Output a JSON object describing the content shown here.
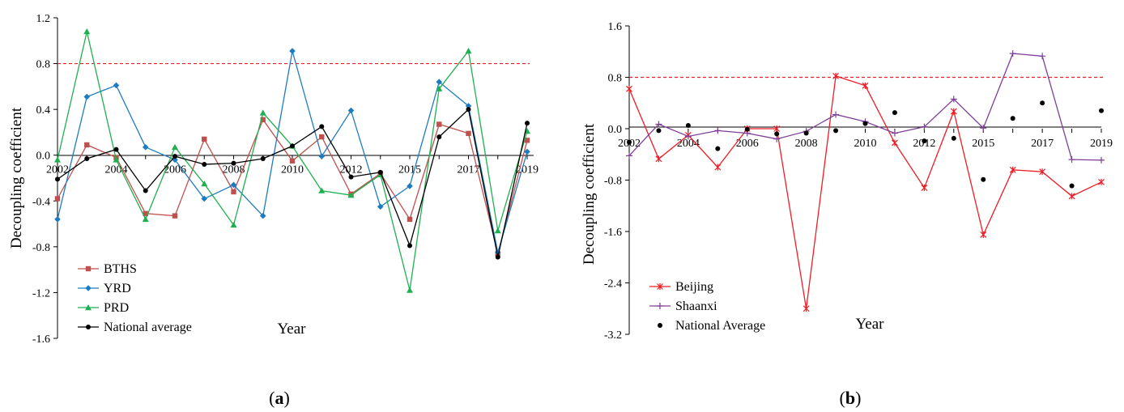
{
  "colors": {
    "BTHS": "#c0504d",
    "YRD": "#1f7bc1",
    "PRD": "#1eb04f",
    "National average": "#000000",
    "Beijing": "#ee1c24",
    "Shaanxi": "#7f3f98",
    "threshold": "#ee1c24"
  },
  "chart_data": [
    {
      "type": "line",
      "panel": "a",
      "panel_label": {
        "open": "(",
        "letter": "a",
        "close": ")"
      },
      "ylabel": "Decoupling  coefficient",
      "xlabel": "Year",
      "ylim": [
        -1.6,
        1.2
      ],
      "yticks": [
        "1.2",
        "0.8",
        "0.4",
        "0.0",
        "-0.4",
        "-0.8",
        "-1.2",
        "-1.6"
      ],
      "ytick_values": [
        1.2,
        0.8,
        0.4,
        0.0,
        -0.4,
        -0.8,
        -1.2,
        -1.6
      ],
      "x": [
        2002,
        2003,
        2004,
        2005,
        2006,
        2007,
        2008,
        2009,
        2010,
        2011,
        2012,
        2013,
        2015,
        2016,
        2017,
        2018,
        2019
      ],
      "xtick_labels": [
        "2002",
        "2004",
        "2006",
        "2008",
        "2010",
        "2012",
        "2015",
        "2017",
        "2019"
      ],
      "xtick_label_index": [
        0,
        2,
        4,
        6,
        8,
        10,
        12,
        14,
        16
      ],
      "threshold": 0.8,
      "series": [
        {
          "name": "BTHS",
          "marker": "square",
          "values": [
            -0.38,
            0.09,
            -0.02,
            -0.51,
            -0.53,
            0.14,
            -0.32,
            0.31,
            -0.05,
            0.16,
            -0.34,
            -0.16,
            -0.56,
            0.27,
            0.19,
            -0.86,
            0.13
          ]
        },
        {
          "name": "YRD",
          "marker": "diamond",
          "values": [
            -0.56,
            0.51,
            0.61,
            0.07,
            -0.04,
            -0.38,
            -0.26,
            -0.53,
            0.91,
            -0.01,
            0.39,
            -0.45,
            -0.27,
            0.64,
            0.43,
            -0.85,
            0.03
          ]
        },
        {
          "name": "PRD",
          "marker": "triangle",
          "values": [
            -0.04,
            1.08,
            -0.04,
            -0.56,
            0.07,
            -0.25,
            -0.61,
            0.37,
            0.08,
            -0.31,
            -0.35,
            -0.17,
            -1.18,
            0.58,
            0.91,
            -0.66,
            0.21
          ]
        },
        {
          "name": "National average",
          "marker": "circle",
          "values": [
            -0.21,
            -0.03,
            0.05,
            -0.31,
            -0.01,
            -0.08,
            -0.07,
            -0.03,
            0.08,
            0.25,
            -0.19,
            -0.15,
            -0.79,
            0.16,
            0.4,
            -0.89,
            0.28
          ]
        }
      ]
    },
    {
      "type": "line",
      "panel": "b",
      "panel_label": {
        "open": "(",
        "letter": "b",
        "close": ")"
      },
      "ylabel": "Decoupling  coefficient",
      "xlabel": "Year",
      "ylim": [
        -3.2,
        1.6
      ],
      "yticks": [
        "1.6",
        "0.8",
        "0.0",
        "-0.8",
        "-1.6",
        "-2.4",
        "-3.2"
      ],
      "ytick_values": [
        1.6,
        0.8,
        0.0,
        -0.8,
        -1.6,
        -2.4,
        -3.2
      ],
      "x": [
        2002,
        2003,
        2004,
        2005,
        2006,
        2007,
        2008,
        2009,
        2010,
        2011,
        2012,
        2013,
        2015,
        2016,
        2017,
        2018,
        2019
      ],
      "xtick_labels": [
        "2002",
        "2004",
        "2006",
        "2008",
        "2010",
        "2012",
        "2015",
        "2017",
        "2019"
      ],
      "xtick_label_index": [
        0,
        2,
        4,
        6,
        8,
        10,
        12,
        14,
        16
      ],
      "threshold": 0.8,
      "series": [
        {
          "name": "Beijing",
          "marker": "star",
          "values": [
            0.62,
            -0.47,
            -0.1,
            -0.6,
            0.0,
            0.0,
            -2.8,
            0.82,
            0.67,
            -0.22,
            -0.92,
            0.27,
            -1.65,
            -0.64,
            -0.67,
            -1.05,
            -0.83
          ]
        },
        {
          "name": "Shaanxi",
          "marker": "plus",
          "values": [
            -0.42,
            0.07,
            -0.12,
            -0.03,
            -0.07,
            -0.16,
            -0.04,
            0.22,
            0.11,
            -0.07,
            0.03,
            0.46,
            0.01,
            1.17,
            1.13,
            -0.48,
            -0.49
          ]
        },
        {
          "name": "National Average",
          "marker": "circle",
          "values": [
            -0.21,
            -0.03,
            0.05,
            -0.31,
            -0.01,
            -0.08,
            -0.07,
            -0.03,
            0.08,
            0.25,
            -0.19,
            -0.15,
            -0.79,
            0.16,
            0.4,
            -0.89,
            0.28
          ]
        }
      ]
    }
  ]
}
